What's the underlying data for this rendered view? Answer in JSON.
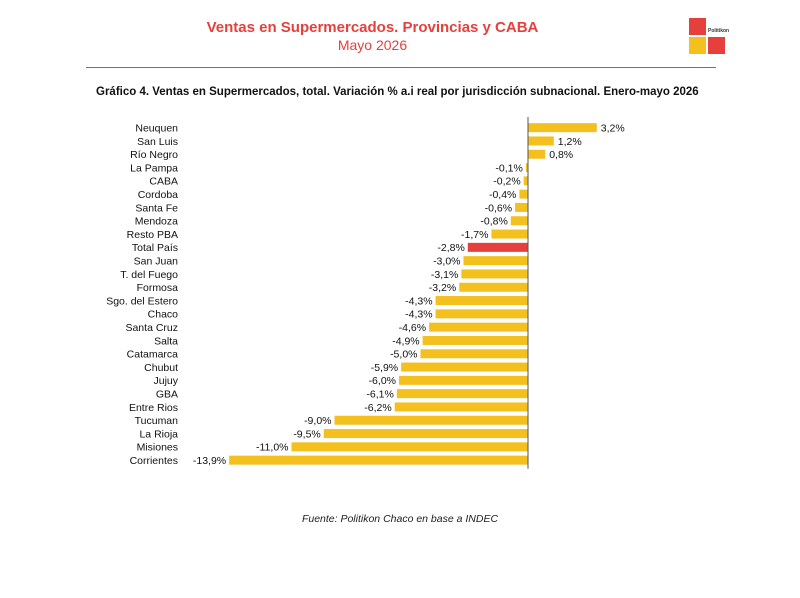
{
  "header": {
    "title": "Ventas en Supermercados. Provincias y CABA",
    "subtitle": "Mayo 2026",
    "logo_text": "Politikon"
  },
  "colors": {
    "accent": "#e5403c",
    "bar": "#f4c01e",
    "highlight_bar": "#e5403c"
  },
  "footer": {
    "source": "Fuente: Politikon Chaco en base a INDEC"
  },
  "chart_data": {
    "type": "bar",
    "orientation": "horizontal",
    "title": "Gráfico 4. Ventas en Supermercados, total. Variación % a.i real por jurisdicción subnacional. Enero-mayo 2026",
    "categories": [
      "Neuquen",
      "San Luis",
      "Río Negro",
      "La Pampa",
      "CABA",
      "Cordoba",
      "Santa Fe",
      "Mendoza",
      "Resto PBA",
      "Total País",
      "San Juan",
      "T. del Fuego",
      "Formosa",
      "Sgo. del Estero",
      "Chaco",
      "Santa Cruz",
      "Salta",
      "Catamarca",
      "Chubut",
      "Jujuy",
      "GBA",
      "Entre Rios",
      "Tucuman",
      "La Rioja",
      "Misiones",
      "Corrientes"
    ],
    "values": [
      3.2,
      1.2,
      0.8,
      -0.1,
      -0.2,
      -0.4,
      -0.6,
      -0.8,
      -1.7,
      -2.8,
      -3.0,
      -3.1,
      -3.2,
      -4.3,
      -4.3,
      -4.6,
      -4.9,
      -5.0,
      -5.9,
      -6.0,
      -6.1,
      -6.2,
      -9.0,
      -9.5,
      -11.0,
      -13.9
    ],
    "labels": [
      "3,2%",
      "1,2%",
      "0,8%",
      "-0,1%",
      "-0,2%",
      "-0,4%",
      "-0,6%",
      "-0,8%",
      "-1,7%",
      "-2,8%",
      "-3,0%",
      "-3,1%",
      "-3,2%",
      "-4,3%",
      "-4,3%",
      "-4,6%",
      "-4,9%",
      "-5,0%",
      "-5,9%",
      "-6,0%",
      "-6,1%",
      "-6,2%",
      "-9,0%",
      "-9,5%",
      "-11,0%",
      "-13,9%"
    ],
    "highlight": "Total País",
    "xlabel": "",
    "ylabel": "",
    "grid": false,
    "legend": "none"
  }
}
